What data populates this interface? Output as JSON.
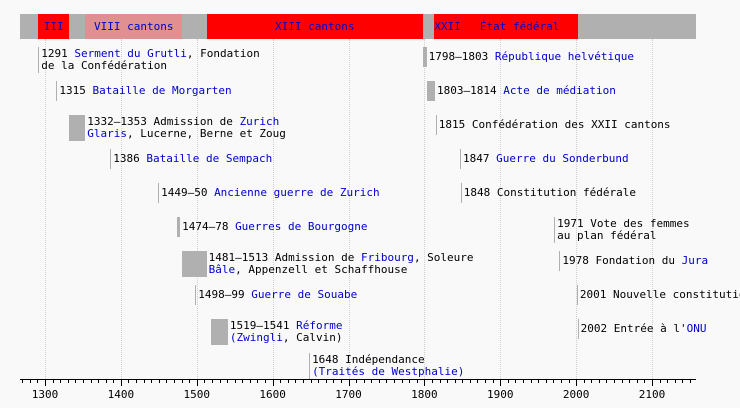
{
  "colors": {
    "band_grey": "#b0b0b0",
    "band_red": "#ff0000",
    "band_pink": "#e09090",
    "link": "#0000cc",
    "bar": "#b0b0b0",
    "background": "#f9f9f9"
  },
  "scale": {
    "year_min": 1267,
    "year_max": 2158,
    "ticks": [
      1300,
      1400,
      1500,
      1600,
      1700,
      1800,
      1900,
      2000,
      2100
    ]
  },
  "bands": [
    {
      "from": 1267,
      "to": 1291,
      "color": "#b0b0b0",
      "label": ""
    },
    {
      "from": 1291,
      "to": 1332,
      "color": "#ff0000",
      "label": "III"
    },
    {
      "from": 1332,
      "to": 1353,
      "color": "#b0b0b0",
      "label": ""
    },
    {
      "from": 1353,
      "to": 1481,
      "color": "#e09090",
      "label": "VIII cantons"
    },
    {
      "from": 1481,
      "to": 1513,
      "color": "#b0b0b0",
      "label": ""
    },
    {
      "from": 1513,
      "to": 1798,
      "color": "#ff0000",
      "label": "XIII cantons"
    },
    {
      "from": 1798,
      "to": 1813,
      "color": "#b0b0b0",
      "label": ""
    },
    {
      "from": 1813,
      "to": 1848,
      "color": "#ff0000",
      "label": "XXII"
    },
    {
      "from": 1848,
      "to": 2003,
      "color": "#ff0000",
      "label": "État fédéral"
    },
    {
      "from": 2003,
      "to": 2158,
      "color": "#b0b0b0",
      "label": ""
    }
  ],
  "events": [
    {
      "from": 1291,
      "to": 1291,
      "row": 0,
      "lines": [
        [
          {
            "t": "1291 "
          },
          {
            "t": "Serment du Grutli",
            "link": true
          },
          {
            "t": ", Fondation"
          }
        ],
        [
          {
            "t": "de la Confédération"
          }
        ]
      ]
    },
    {
      "from": 1315,
      "to": 1315,
      "row": 1,
      "lines": [
        [
          {
            "t": "1315 "
          },
          {
            "t": "Bataille de Morgarten",
            "link": true
          }
        ]
      ]
    },
    {
      "from": 1332,
      "to": 1353,
      "row": 2,
      "lines": [
        [
          {
            "t": "1332–1353 Admission de "
          },
          {
            "t": "Zurich",
            "link": true
          }
        ],
        [
          {
            "t": "Glaris",
            "link": true
          },
          {
            "t": ", Lucerne, Berne et Zoug"
          }
        ]
      ]
    },
    {
      "from": 1386,
      "to": 1386,
      "row": 3,
      "lines": [
        [
          {
            "t": "1386 "
          },
          {
            "t": "Bataille de Sempach",
            "link": true
          }
        ]
      ]
    },
    {
      "from": 1449,
      "to": 1450,
      "row": 4,
      "lines": [
        [
          {
            "t": "1449–50 "
          },
          {
            "t": "Ancienne guerre de Zurich",
            "link": true
          }
        ]
      ]
    },
    {
      "from": 1474,
      "to": 1478,
      "row": 5,
      "lines": [
        [
          {
            "t": "1474–78 "
          },
          {
            "t": "Guerres de Bourgogne",
            "link": true
          }
        ]
      ]
    },
    {
      "from": 1481,
      "to": 1513,
      "row": 6,
      "lines": [
        [
          {
            "t": "1481–1513 Admission de "
          },
          {
            "t": "Fribourg",
            "link": true
          },
          {
            "t": ", Soleure"
          }
        ],
        [
          {
            "t": "Bâle",
            "link": true
          },
          {
            "t": ", Appenzell et Schaffhouse"
          }
        ]
      ]
    },
    {
      "from": 1498,
      "to": 1499,
      "row": 7,
      "lines": [
        [
          {
            "t": "1498–99 "
          },
          {
            "t": "Guerre de Souabe",
            "link": true
          }
        ]
      ]
    },
    {
      "from": 1519,
      "to": 1541,
      "row": 8,
      "lines": [
        [
          {
            "t": "1519–1541 "
          },
          {
            "t": "Réforme",
            "link": true
          }
        ],
        [
          {
            "t": "(Zwingli",
            "link": true
          },
          {
            "t": ", Calvin)"
          }
        ]
      ]
    },
    {
      "from": 1648,
      "to": 1648,
      "row": 9,
      "lines": [
        [
          {
            "t": "1648 Indépendance"
          }
        ],
        [
          {
            "t": "(Traités de Westphalie)",
            "link": true
          }
        ]
      ]
    },
    {
      "from": 1798,
      "to": 1803,
      "row": 0,
      "lines": [
        [
          {
            "t": "1798–1803 "
          },
          {
            "t": "République helvétique",
            "link": true
          }
        ]
      ]
    },
    {
      "from": 1803,
      "to": 1814,
      "row": 1,
      "lines": [
        [
          {
            "t": "1803–1814 "
          },
          {
            "t": "Acte de médiation",
            "link": true
          }
        ]
      ]
    },
    {
      "from": 1815,
      "to": 1815,
      "row": 2,
      "lines": [
        [
          {
            "t": "1815 Confédération des XXII cantons"
          }
        ]
      ]
    },
    {
      "from": 1847,
      "to": 1847,
      "row": 3,
      "lines": [
        [
          {
            "t": "1847 "
          },
          {
            "t": "Guerre du Sonderbund",
            "link": true
          }
        ]
      ]
    },
    {
      "from": 1848,
      "to": 1848,
      "row": 4,
      "lines": [
        [
          {
            "t": "1848 Constitution fédérale"
          }
        ]
      ]
    },
    {
      "from": 1971,
      "to": 1971,
      "row": 5,
      "lines": [
        [
          {
            "t": "1971 Vote des femmes"
          }
        ],
        [
          {
            "t": "au plan fédéral"
          }
        ]
      ]
    },
    {
      "from": 1978,
      "to": 1978,
      "row": 6,
      "lines": [
        [
          {
            "t": "1978 Fondation du "
          },
          {
            "t": "Jura",
            "link": true
          }
        ]
      ]
    },
    {
      "from": 2001,
      "to": 2001,
      "row": 7,
      "lines": [
        [
          {
            "t": "2001 Nouvelle constitution"
          }
        ]
      ]
    },
    {
      "from": 2002,
      "to": 2002,
      "row": 8,
      "lines": [
        [
          {
            "t": "2002 Entrée à l'"
          },
          {
            "t": "ONU",
            "link": true
          }
        ]
      ]
    }
  ]
}
